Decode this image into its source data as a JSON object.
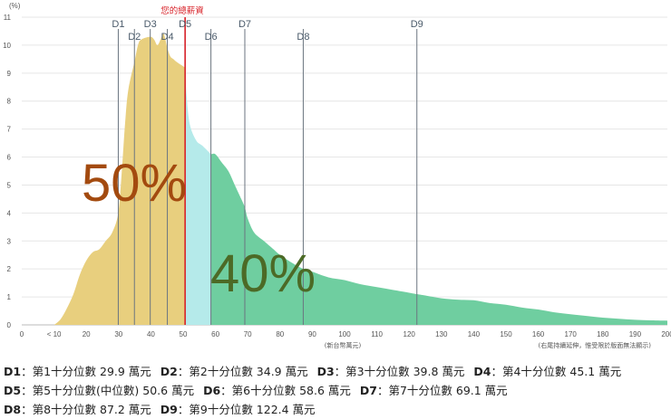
{
  "chart_data": {
    "type": "area",
    "y_unit": "(%)",
    "x_unit_note": "(新台幣萬元)",
    "x_max_note": "(右尾持續延伸，惟受限於版面無法顯示)",
    "user_marker_label": "您的總薪資",
    "ylim": [
      0,
      11
    ],
    "xlim": [
      0,
      200
    ],
    "y_ticks": [
      "0",
      "1",
      "2",
      "3",
      "4",
      "5",
      "6",
      "7",
      "8",
      "9",
      "10",
      "11"
    ],
    "x_ticks": [
      {
        "v": 0,
        "label": "0"
      },
      {
        "v": 10,
        "label": "< 10"
      },
      {
        "v": 20,
        "label": "20"
      },
      {
        "v": 30,
        "label": "30"
      },
      {
        "v": 40,
        "label": "40"
      },
      {
        "v": 50,
        "label": "50"
      },
      {
        "v": 60,
        "label": "60"
      },
      {
        "v": 70,
        "label": "70"
      },
      {
        "v": 80,
        "label": "80"
      },
      {
        "v": 90,
        "label": "90"
      },
      {
        "v": 100,
        "label": "100"
      },
      {
        "v": 110,
        "label": "110"
      },
      {
        "v": 120,
        "label": "120"
      },
      {
        "v": 130,
        "label": "130"
      },
      {
        "v": 140,
        "label": "140"
      },
      {
        "v": 150,
        "label": "150"
      },
      {
        "v": 160,
        "label": "160"
      },
      {
        "v": 170,
        "label": "170"
      },
      {
        "v": 180,
        "label": "180"
      },
      {
        "v": 190,
        "label": "190"
      },
      {
        "v": 200,
        "label": "200"
      }
    ],
    "distribution": [
      [
        10,
        0
      ],
      [
        12,
        0.2
      ],
      [
        14,
        0.6
      ],
      [
        16,
        1.1
      ],
      [
        18,
        1.8
      ],
      [
        20,
        2.3
      ],
      [
        22,
        2.6
      ],
      [
        24,
        2.7
      ],
      [
        26,
        3.0
      ],
      [
        28,
        3.3
      ],
      [
        29.9,
        4.0
      ],
      [
        31,
        5.5
      ],
      [
        32,
        7.2
      ],
      [
        33,
        8.4
      ],
      [
        34.9,
        9.4
      ],
      [
        36,
        10.0
      ],
      [
        37,
        10.2
      ],
      [
        39.8,
        10.3
      ],
      [
        41,
        10.2
      ],
      [
        42,
        10.0
      ],
      [
        43,
        10.2
      ],
      [
        44,
        10.4
      ],
      [
        45.1,
        9.9
      ],
      [
        46,
        9.6
      ],
      [
        47,
        9.5
      ],
      [
        48,
        9.4
      ],
      [
        50.6,
        9.2
      ],
      [
        51,
        8.3
      ],
      [
        52,
        7.2
      ],
      [
        54,
        6.6
      ],
      [
        56,
        6.4
      ],
      [
        58.6,
        6.1
      ],
      [
        60,
        6.1
      ],
      [
        62,
        5.8
      ],
      [
        64,
        5.5
      ],
      [
        66,
        5.0
      ],
      [
        68,
        4.5
      ],
      [
        69.1,
        4.2
      ],
      [
        70,
        3.8
      ],
      [
        72,
        3.3
      ],
      [
        75,
        3.0
      ],
      [
        78,
        2.7
      ],
      [
        80,
        2.5
      ],
      [
        84,
        2.2
      ],
      [
        87.2,
        2.0
      ],
      [
        90,
        1.9
      ],
      [
        95,
        1.7
      ],
      [
        100,
        1.6
      ],
      [
        105,
        1.45
      ],
      [
        110,
        1.35
      ],
      [
        115,
        1.25
      ],
      [
        120,
        1.15
      ],
      [
        122.4,
        1.1
      ],
      [
        125,
        1.05
      ],
      [
        130,
        0.95
      ],
      [
        135,
        0.9
      ],
      [
        140,
        0.88
      ],
      [
        145,
        0.78
      ],
      [
        150,
        0.72
      ],
      [
        155,
        0.62
      ],
      [
        160,
        0.55
      ],
      [
        165,
        0.45
      ],
      [
        170,
        0.38
      ],
      [
        175,
        0.32
      ],
      [
        180,
        0.26
      ],
      [
        185,
        0.22
      ],
      [
        190,
        0.18
      ],
      [
        195,
        0.16
      ],
      [
        200,
        0.15
      ]
    ],
    "regions": [
      {
        "from": 10,
        "to": 50.6,
        "color": "#e8cf7e",
        "percent_label": "50%",
        "label_color": "#a34a0f"
      },
      {
        "from": 50.6,
        "to": 58.6,
        "color": "#b5eaea",
        "percent_label": "",
        "label_color": ""
      },
      {
        "from": 58.6,
        "to": 200,
        "color": "#6fcea0",
        "percent_label": "40%",
        "label_color": "#4c6a26"
      }
    ],
    "user_marker_value": 50.6,
    "user_marker_color": "#d8232a",
    "deciles": [
      {
        "id": "D1",
        "value": 29.9,
        "label_row": 1
      },
      {
        "id": "D2",
        "value": 34.9,
        "label_row": 2
      },
      {
        "id": "D3",
        "value": 39.8,
        "label_row": 1
      },
      {
        "id": "D4",
        "value": 45.1,
        "label_row": 2
      },
      {
        "id": "D5",
        "value": 50.6,
        "label_row": 1
      },
      {
        "id": "D6",
        "value": 58.6,
        "label_row": 2
      },
      {
        "id": "D7",
        "value": 69.1,
        "label_row": 1
      },
      {
        "id": "D8",
        "value": 87.2,
        "label_row": 2
      },
      {
        "id": "D9",
        "value": 122.4,
        "label_row": 1
      }
    ]
  },
  "legend": {
    "row1": [
      {
        "key": "D1",
        "text": "：第1十分位數 29.9 萬元"
      },
      {
        "key": "D2",
        "text": "：第2十分位數 34.9 萬元"
      },
      {
        "key": "D3",
        "text": "：第3十分位數 39.8 萬元"
      },
      {
        "key": "D4",
        "text": "：第4十分位數 45.1 萬元"
      }
    ],
    "row2": [
      {
        "key": "D5",
        "text": "：第5十分位數(中位數) 50.6 萬元"
      },
      {
        "key": "D6",
        "text": "：第6十分位數 58.6 萬元"
      },
      {
        "key": "D7",
        "text": "：第7十分位數 69.1 萬元"
      }
    ],
    "row3": [
      {
        "key": "D8",
        "text": "：第8十分位數 87.2 萬元"
      },
      {
        "key": "D9",
        "text": "：第9十分位數 122.4 萬元"
      }
    ]
  }
}
